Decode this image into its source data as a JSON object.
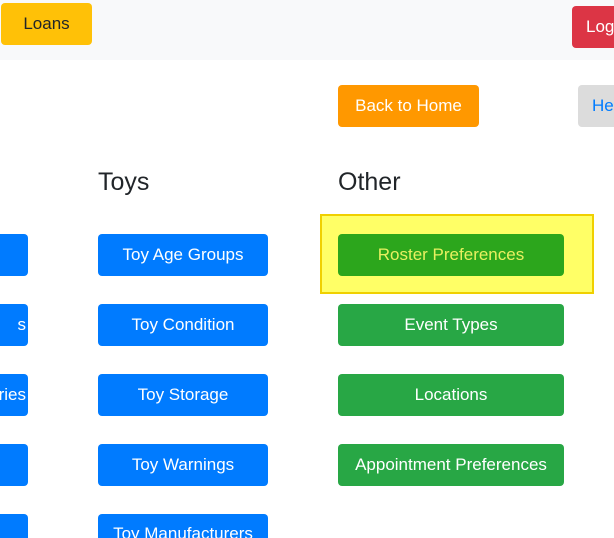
{
  "header": {
    "loans": "Loans",
    "logout": "Log"
  },
  "nav": {
    "back_home": "Back to Home",
    "help": "He"
  },
  "left_column": {
    "items": [
      "",
      "s",
      "ries",
      "",
      ""
    ]
  },
  "toys": {
    "title": "Toys",
    "items": [
      "Toy Age Groups",
      "Toy Condition",
      "Toy Storage",
      "Toy Warnings",
      "Toy Manufacturers"
    ]
  },
  "other": {
    "title": "Other",
    "items": [
      "Roster Preferences",
      "Event Types",
      "Locations",
      "Appointment Preferences"
    ],
    "highlighted": "Roster Preferences"
  },
  "colors": {
    "primary": "#007bff",
    "success": "#28a745",
    "warning": "#ffc107",
    "danger": "#dc3545",
    "orange": "#ff9800",
    "highlight": "#ffff66"
  }
}
